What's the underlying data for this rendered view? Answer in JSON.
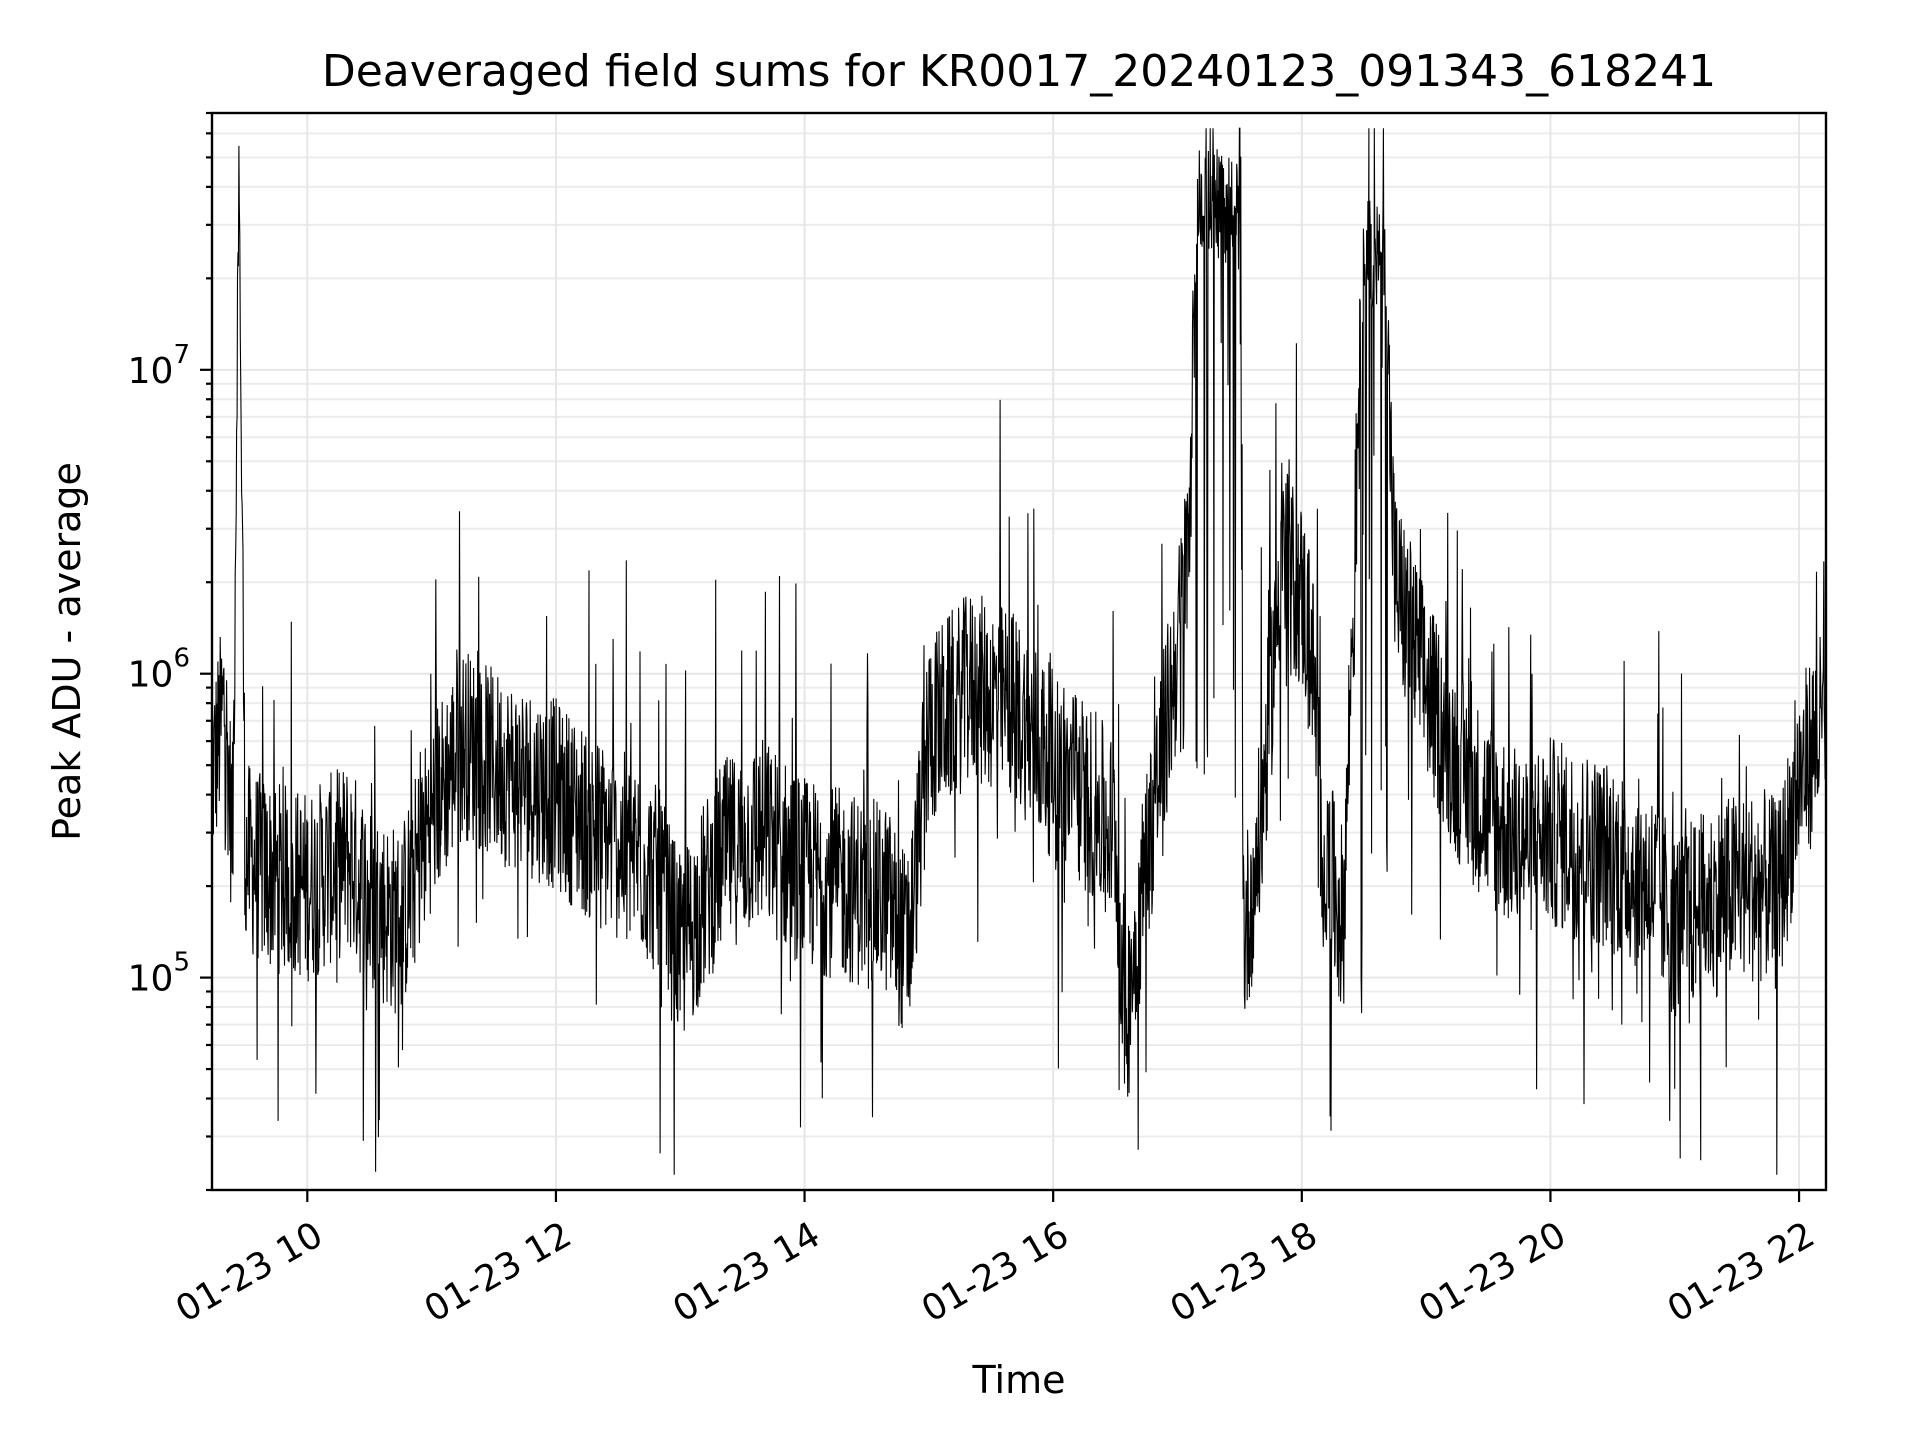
{
  "chart_data": {
    "type": "line",
    "title": "Deaveraged field sums for KR0017_20240123_091343_618241",
    "xlabel": "Time",
    "ylabel": "Peak ADU - average",
    "y_scale": "log",
    "ylim": [
      20000,
      70000000
    ],
    "xlim": [
      "2024-01-23 09:14",
      "2024-01-23 22:13"
    ],
    "grid": "on (major and minor)",
    "legend": "none",
    "line_color": "#000000",
    "x_ticks": [
      {
        "value": "2024-01-23 10:00",
        "label": "01-23 10"
      },
      {
        "value": "2024-01-23 12:00",
        "label": "01-23 12"
      },
      {
        "value": "2024-01-23 14:00",
        "label": "01-23 14"
      },
      {
        "value": "2024-01-23 16:00",
        "label": "01-23 16"
      },
      {
        "value": "2024-01-23 18:00",
        "label": "01-23 18"
      },
      {
        "value": "2024-01-23 20:00",
        "label": "01-23 20"
      },
      {
        "value": "2024-01-23 22:00",
        "label": "01-23 22"
      }
    ],
    "y_ticks": [
      {
        "value": 100000,
        "base": "10",
        "exp": "5"
      },
      {
        "value": 1000000,
        "base": "10",
        "exp": "6"
      },
      {
        "value": 10000000,
        "base": "10",
        "exp": "7"
      }
    ],
    "series": [
      {
        "x": [
          "2024-01-23 09:14",
          "2024-01-23 09:20",
          "2024-01-23 09:24",
          "2024-01-23 09:27",
          "2024-01-23 09:30",
          "2024-01-23 09:40",
          "2024-01-23 10:00",
          "2024-01-23 10:20",
          "2024-01-23 10:30",
          "2024-01-23 10:45",
          "2024-01-23 11:00",
          "2024-01-23 11:15",
          "2024-01-23 11:30",
          "2024-01-23 11:45",
          "2024-01-23 12:00",
          "2024-01-23 12:20",
          "2024-01-23 12:40",
          "2024-01-23 12:50",
          "2024-01-23 13:00",
          "2024-01-23 13:20",
          "2024-01-23 13:40",
          "2024-01-23 14:00",
          "2024-01-23 14:20",
          "2024-01-23 14:40",
          "2024-01-23 14:50",
          "2024-01-23 15:00",
          "2024-01-23 15:20",
          "2024-01-23 15:40",
          "2024-01-23 16:00",
          "2024-01-23 16:15",
          "2024-01-23 16:30",
          "2024-01-23 16:35",
          "2024-01-23 16:45",
          "2024-01-23 16:55",
          "2024-01-23 17:00",
          "2024-01-23 17:05",
          "2024-01-23 17:10",
          "2024-01-23 17:20",
          "2024-01-23 17:30",
          "2024-01-23 17:32",
          "2024-01-23 17:40",
          "2024-01-23 17:50",
          "2024-01-23 18:00",
          "2024-01-23 18:05",
          "2024-01-23 18:10",
          "2024-01-23 18:20",
          "2024-01-23 18:30",
          "2024-01-23 18:40",
          "2024-01-23 18:45",
          "2024-01-23 19:00",
          "2024-01-23 19:15",
          "2024-01-23 19:30",
          "2024-01-23 19:45",
          "2024-01-23 20:00",
          "2024-01-23 20:30",
          "2024-01-23 20:50",
          "2024-01-23 21:00",
          "2024-01-23 21:20",
          "2024-01-23 21:30",
          "2024-01-23 21:45",
          "2024-01-23 21:50",
          "2024-01-23 22:00",
          "2024-01-23 22:10"
        ],
        "y": [
          450000,
          800000,
          280000,
          50000000,
          250000,
          220000,
          200000,
          250000,
          180000,
          150000,
          350000,
          600000,
          500000,
          450000,
          400000,
          300000,
          250000,
          200000,
          120000,
          250000,
          300000,
          220000,
          200000,
          180000,
          120000,
          650000,
          900000,
          800000,
          500000,
          400000,
          300000,
          70000,
          250000,
          700000,
          1200000,
          2500000,
          38000000,
          35000000,
          32000000,
          130000,
          300000,
          2500000,
          1800000,
          1200000,
          260000,
          150000,
          25000000,
          22000000,
          2000000,
          900000,
          500000,
          350000,
          280000,
          300000,
          250000,
          200000,
          150000,
          180000,
          200000,
          200000,
          180000,
          450000,
          650000
        ]
      }
    ]
  }
}
